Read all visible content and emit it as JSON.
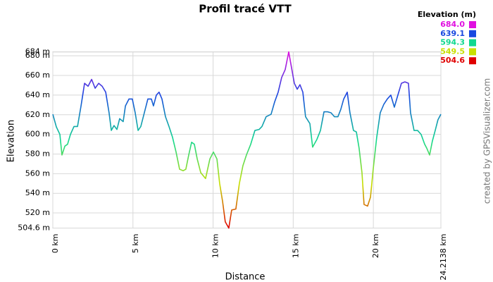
{
  "chart_data": {
    "type": "line",
    "title": "Profil tracé VTT",
    "x_label": "Distance",
    "y_label": "Elevation",
    "credit": "created by GPSVisualizer.com",
    "legend_title": "Elevation (m)",
    "color_scale": [
      {
        "value": 684,
        "label": "684.0",
        "color": "#e010e0"
      },
      {
        "value": 639.1,
        "label": "639.1",
        "color": "#1848e0"
      },
      {
        "value": 594.3,
        "label": "594.3",
        "color": "#10d890"
      },
      {
        "value": 549.5,
        "label": "549.5",
        "color": "#c8e000"
      },
      {
        "value": 504.6,
        "label": "504.6",
        "color": "#e00000"
      }
    ],
    "grid": true,
    "xlim": [
      0,
      24.2138
    ],
    "xticks": [
      {
        "value": 0,
        "label": "0 km"
      },
      {
        "value": 5,
        "label": "5 km"
      },
      {
        "value": 10,
        "label": "10 km"
      },
      {
        "value": 15,
        "label": "15 km"
      },
      {
        "value": 20,
        "label": "20 km"
      },
      {
        "value": 24.2138,
        "label": "24.2138 km"
      }
    ],
    "ylim": [
      504.6,
      684
    ],
    "yticks": [
      {
        "value": 504.6,
        "label": "504.6 m"
      },
      {
        "value": 520,
        "label": "520 m"
      },
      {
        "value": 540,
        "label": "540 m"
      },
      {
        "value": 560,
        "label": "560 m"
      },
      {
        "value": 580,
        "label": "580 m"
      },
      {
        "value": 600,
        "label": "600 m"
      },
      {
        "value": 620,
        "label": "620 m"
      },
      {
        "value": 640,
        "label": "640 m"
      },
      {
        "value": 660,
        "label": "660 m"
      },
      {
        "value": 680,
        "label": "680 m"
      },
      {
        "value": 684,
        "label": "684 m"
      }
    ],
    "x": [
      0,
      0.22,
      0.44,
      0.57,
      0.75,
      0.92,
      1.1,
      1.32,
      1.54,
      1.76,
      1.98,
      2.2,
      2.42,
      2.64,
      2.86,
      3.08,
      3.3,
      3.51,
      3.65,
      3.82,
      4.0,
      4.17,
      4.39,
      4.53,
      4.75,
      4.96,
      5.14,
      5.32,
      5.49,
      5.71,
      5.93,
      6.15,
      6.28,
      6.46,
      6.63,
      6.81,
      7.03,
      7.25,
      7.47,
      7.69,
      7.91,
      8.13,
      8.3,
      8.48,
      8.66,
      8.83,
      9.01,
      9.23,
      9.53,
      9.8,
      10.02,
      10.24,
      10.41,
      10.59,
      10.76,
      10.98,
      11.16,
      11.42,
      11.64,
      11.86,
      12.08,
      12.35,
      12.61,
      12.87,
      13.05,
      13.31,
      13.62,
      13.84,
      14.06,
      14.28,
      14.5,
      14.72,
      14.85,
      15.07,
      15.25,
      15.42,
      15.6,
      15.77,
      16.04,
      16.21,
      16.48,
      16.7,
      16.92,
      17.14,
      17.36,
      17.57,
      17.79,
      17.97,
      18.15,
      18.37,
      18.54,
      18.76,
      18.94,
      19.11,
      19.29,
      19.42,
      19.64,
      19.82,
      19.99,
      20.21,
      20.43,
      20.65,
      20.87,
      21.09,
      21.31,
      21.53,
      21.75,
      21.97,
      22.19,
      22.32,
      22.54,
      22.76,
      22.98,
      23.2,
      23.33,
      23.51,
      23.68,
      23.86,
      24.03,
      24.2138
    ],
    "series": [
      {
        "name": "Elevation",
        "values": [
          620.5,
          607.6,
          600,
          579,
          588,
          590,
          600,
          608,
          608,
          629,
          652,
          649,
          656,
          647,
          652,
          649,
          643,
          622,
          604,
          609,
          605,
          616,
          613,
          629,
          636,
          636,
          622,
          604,
          608,
          622,
          636,
          636,
          629,
          640,
          643,
          636,
          618,
          608,
          597,
          582,
          564.5,
          563,
          564.5,
          579,
          592,
          590,
          575,
          561,
          555,
          575,
          582,
          575,
          550,
          532,
          511,
          504.6,
          523,
          524,
          550,
          568,
          579,
          590,
          604,
          605,
          608,
          618,
          620.5,
          633,
          643,
          658,
          666,
          684,
          672,
          652,
          646,
          650.6,
          643,
          618,
          611,
          587,
          595,
          604,
          623,
          623,
          622,
          618,
          618,
          625.5,
          636,
          643,
          622,
          604,
          602.5,
          586,
          561,
          528.6,
          527,
          536,
          564.5,
          597,
          622,
          630.5,
          636,
          640,
          627.7,
          640,
          652,
          653.5,
          652,
          622,
          604,
          604,
          600,
          590,
          586,
          579,
          593,
          604,
          614.8,
          620.5
        ]
      }
    ]
  }
}
